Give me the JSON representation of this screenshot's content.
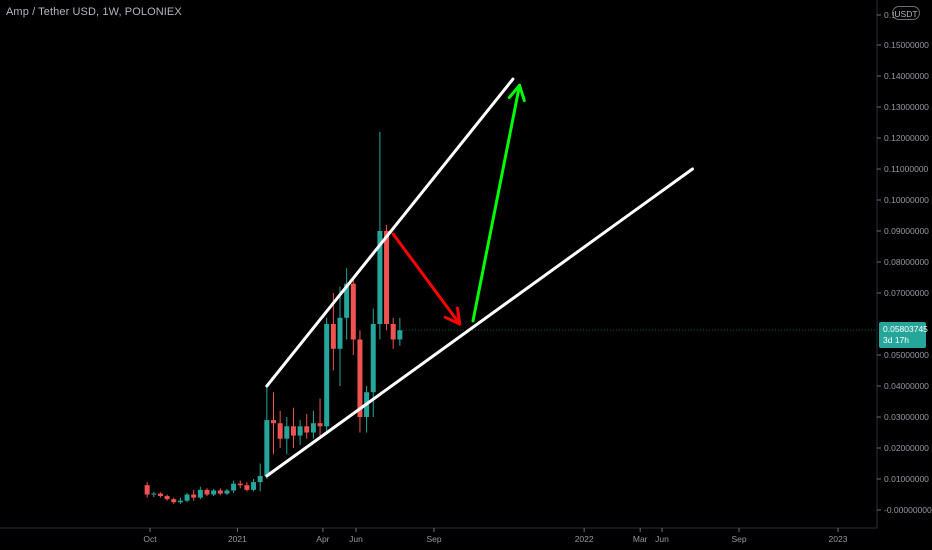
{
  "symbol_title": "Amp / Tether USD, 1W, POLONIEX",
  "currency_badge": "USDT",
  "last_price": {
    "value": "0.05803745",
    "countdown": "3d 17h",
    "color": "#26a69a"
  },
  "colors": {
    "background": "#000000",
    "up_candle": "#26a69a",
    "down_candle": "#ef5350",
    "axis_text": "#9598a1",
    "channel_line": "#ffffff",
    "down_arrow": "#ff0000",
    "up_arrow": "#00ff00"
  },
  "chart_data": {
    "type": "candlestick",
    "x_axis_labels": [
      "Oct",
      "2021",
      "Apr",
      "Jun",
      "Sep",
      "2022",
      "Mar",
      "Jun",
      "Sep",
      "2023"
    ],
    "y_axis_labels": [
      "0.1",
      "0.15000000",
      "0.14000000",
      "0.13000000",
      "0.12000000",
      "0.11000000",
      "0.10000000",
      "0.09000000",
      "0.08000000",
      "0.07000000",
      "0.05000000",
      "0.04000000",
      "0.03000000",
      "0.02000000",
      "0.01000000",
      "-0.00000000"
    ],
    "ylim": [
      -0.005,
      0.16
    ],
    "grid": false,
    "x_start_date": "2020-09-28",
    "candles": [
      {
        "date": "2020-09-28",
        "open": 0.008,
        "high": 0.009,
        "low": 0.004,
        "close": 0.005
      },
      {
        "date": "2020-10-05",
        "open": 0.005,
        "high": 0.0058,
        "low": 0.0042,
        "close": 0.0053
      },
      {
        "date": "2020-10-12",
        "open": 0.0053,
        "high": 0.0057,
        "low": 0.004,
        "close": 0.0045
      },
      {
        "date": "2020-10-19",
        "open": 0.0045,
        "high": 0.005,
        "low": 0.003,
        "close": 0.0035
      },
      {
        "date": "2020-10-26",
        "open": 0.0035,
        "high": 0.004,
        "low": 0.002,
        "close": 0.0025
      },
      {
        "date": "2020-11-02",
        "open": 0.0025,
        "high": 0.004,
        "low": 0.002,
        "close": 0.003
      },
      {
        "date": "2020-11-09",
        "open": 0.003,
        "high": 0.0055,
        "low": 0.0025,
        "close": 0.005
      },
      {
        "date": "2020-11-16",
        "open": 0.005,
        "high": 0.0065,
        "low": 0.003,
        "close": 0.004
      },
      {
        "date": "2020-11-23",
        "open": 0.004,
        "high": 0.0075,
        "low": 0.0035,
        "close": 0.0065
      },
      {
        "date": "2020-11-30",
        "open": 0.0065,
        "high": 0.007,
        "low": 0.0045,
        "close": 0.005
      },
      {
        "date": "2020-12-07",
        "open": 0.005,
        "high": 0.0068,
        "low": 0.0045,
        "close": 0.0063
      },
      {
        "date": "2020-12-14",
        "open": 0.0063,
        "high": 0.007,
        "low": 0.0048,
        "close": 0.0053
      },
      {
        "date": "2020-12-21",
        "open": 0.0053,
        "high": 0.0068,
        "low": 0.0048,
        "close": 0.0063
      },
      {
        "date": "2020-12-28",
        "open": 0.0063,
        "high": 0.0095,
        "low": 0.0055,
        "close": 0.0085
      },
      {
        "date": "2021-01-04",
        "open": 0.0085,
        "high": 0.0095,
        "low": 0.007,
        "close": 0.008
      },
      {
        "date": "2021-01-11",
        "open": 0.008,
        "high": 0.009,
        "low": 0.006,
        "close": 0.0065
      },
      {
        "date": "2021-01-18",
        "open": 0.0065,
        "high": 0.01,
        "low": 0.006,
        "close": 0.009
      },
      {
        "date": "2021-01-25",
        "open": 0.009,
        "high": 0.015,
        "low": 0.006,
        "close": 0.011
      },
      {
        "date": "2021-02-01",
        "open": 0.011,
        "high": 0.04,
        "low": 0.01,
        "close": 0.029
      },
      {
        "date": "2021-02-08",
        "open": 0.029,
        "high": 0.038,
        "low": 0.018,
        "close": 0.028
      },
      {
        "date": "2021-02-15",
        "open": 0.028,
        "high": 0.032,
        "low": 0.02,
        "close": 0.023
      },
      {
        "date": "2021-02-22",
        "open": 0.023,
        "high": 0.03,
        "low": 0.018,
        "close": 0.027
      },
      {
        "date": "2021-03-01",
        "open": 0.027,
        "high": 0.033,
        "low": 0.02,
        "close": 0.024
      },
      {
        "date": "2021-03-08",
        "open": 0.024,
        "high": 0.029,
        "low": 0.021,
        "close": 0.027
      },
      {
        "date": "2021-03-15",
        "open": 0.027,
        "high": 0.031,
        "low": 0.023,
        "close": 0.025
      },
      {
        "date": "2021-03-22",
        "open": 0.025,
        "high": 0.032,
        "low": 0.023,
        "close": 0.028
      },
      {
        "date": "2021-03-29",
        "open": 0.028,
        "high": 0.036,
        "low": 0.024,
        "close": 0.027
      },
      {
        "date": "2021-04-05",
        "open": 0.027,
        "high": 0.062,
        "low": 0.025,
        "close": 0.06
      },
      {
        "date": "2021-04-12",
        "open": 0.06,
        "high": 0.07,
        "low": 0.045,
        "close": 0.052
      },
      {
        "date": "2021-04-19",
        "open": 0.052,
        "high": 0.072,
        "low": 0.04,
        "close": 0.062
      },
      {
        "date": "2021-04-26",
        "open": 0.062,
        "high": 0.078,
        "low": 0.055,
        "close": 0.073
      },
      {
        "date": "2021-05-03",
        "open": 0.073,
        "high": 0.075,
        "low": 0.05,
        "close": 0.055
      },
      {
        "date": "2021-05-10",
        "open": 0.055,
        "high": 0.058,
        "low": 0.025,
        "close": 0.03
      },
      {
        "date": "2021-05-17",
        "open": 0.03,
        "high": 0.04,
        "low": 0.025,
        "close": 0.038
      },
      {
        "date": "2021-05-24",
        "open": 0.038,
        "high": 0.065,
        "low": 0.03,
        "close": 0.06
      },
      {
        "date": "2021-05-31",
        "open": 0.06,
        "high": 0.122,
        "low": 0.055,
        "close": 0.09
      },
      {
        "date": "2021-06-07",
        "open": 0.09,
        "high": 0.092,
        "low": 0.058,
        "close": 0.06
      },
      {
        "date": "2021-06-14",
        "open": 0.06,
        "high": 0.062,
        "low": 0.052,
        "close": 0.055
      },
      {
        "date": "2021-06-21",
        "open": 0.055,
        "high": 0.062,
        "low": 0.053,
        "close": 0.058
      }
    ],
    "drawings": [
      {
        "name": "upper-channel-line",
        "kind": "line",
        "color": "#ffffff",
        "start": {
          "date": "2021-02-01",
          "price": 0.04
        },
        "end": {
          "date": "2021-10-18",
          "price": 0.139
        }
      },
      {
        "name": "lower-channel-line",
        "kind": "line",
        "color": "#ffffff",
        "start": {
          "date": "2021-02-01",
          "price": 0.011
        },
        "end": {
          "date": "2022-04-25",
          "price": 0.11
        }
      },
      {
        "name": "down-arrow",
        "kind": "arrow",
        "color": "#ff0000",
        "start": {
          "date": "2021-06-14",
          "price": 0.089
        },
        "end": {
          "date": "2021-08-23",
          "price": 0.06
        }
      },
      {
        "name": "up-arrow",
        "kind": "arrow",
        "color": "#00ff00",
        "start": {
          "date": "2021-09-06",
          "price": 0.061
        },
        "end": {
          "date": "2021-10-25",
          "price": 0.137
        }
      }
    ]
  }
}
